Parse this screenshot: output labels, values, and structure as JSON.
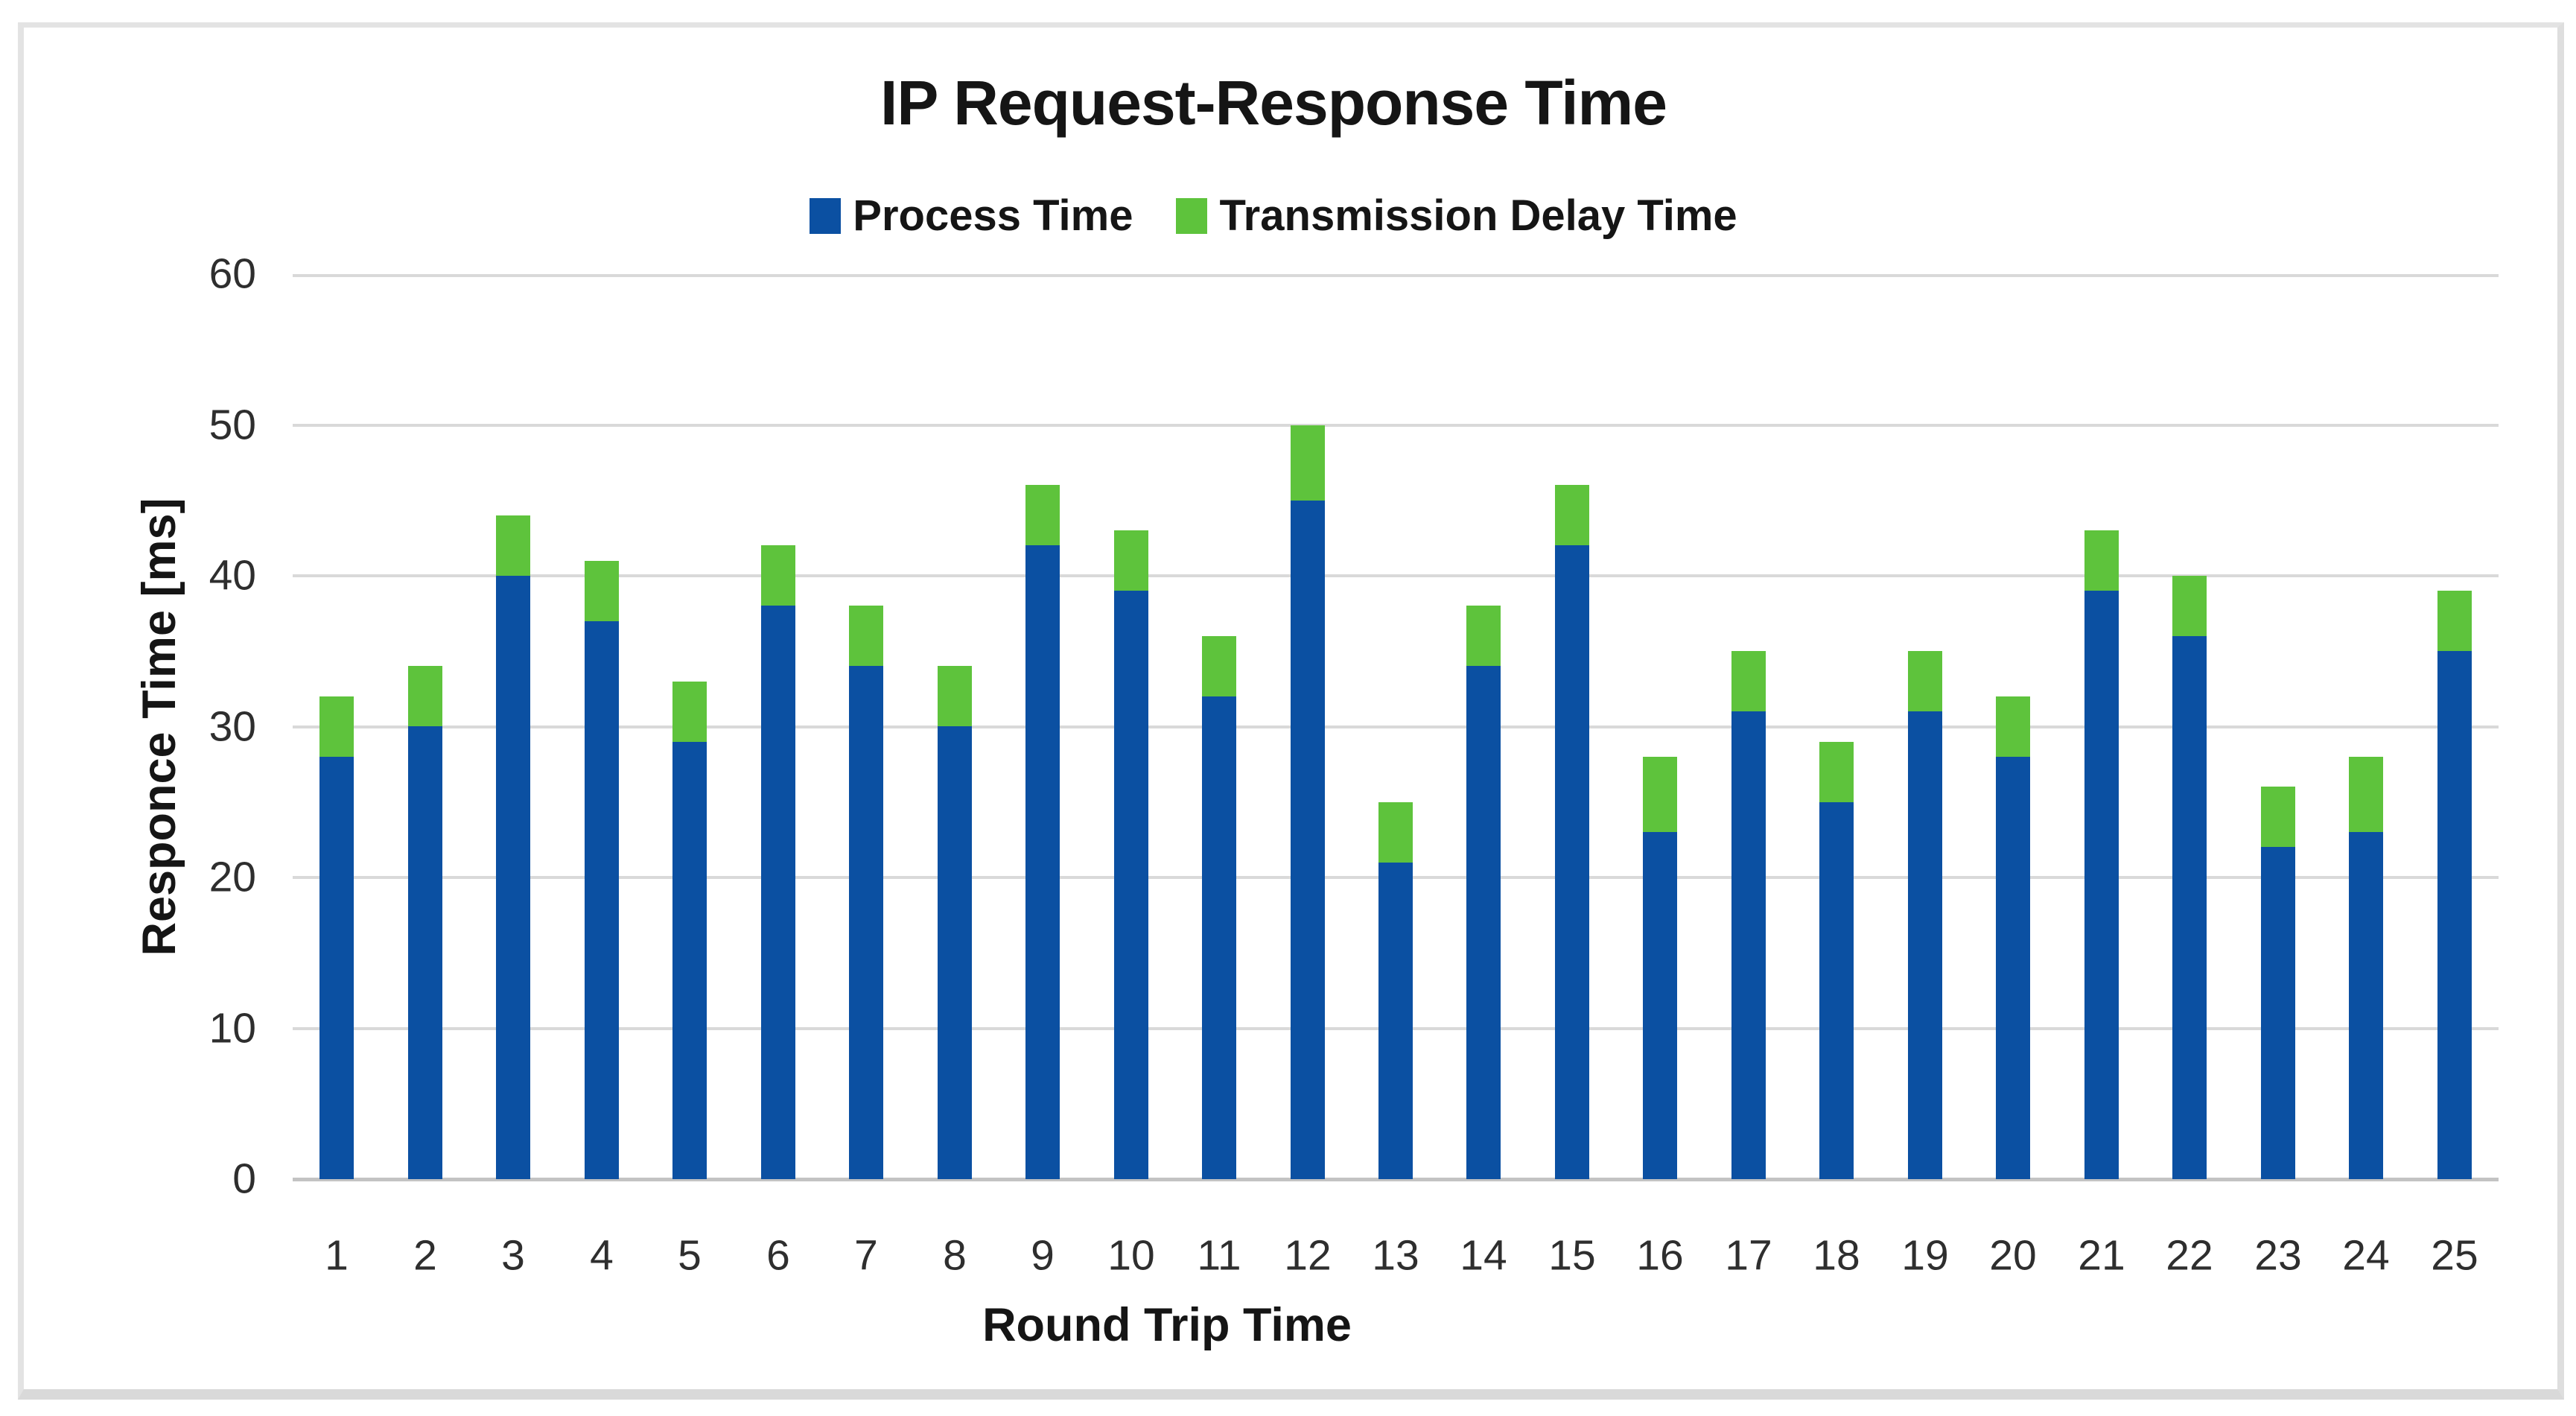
{
  "chart_data": {
    "type": "bar",
    "stacked": true,
    "title": "IP Request-Response Time",
    "xlabel": "Round Trip Time",
    "ylabel": "Responce Time [ms]",
    "categories": [
      1,
      2,
      3,
      4,
      5,
      6,
      7,
      8,
      9,
      10,
      11,
      12,
      13,
      14,
      15,
      16,
      17,
      18,
      19,
      20,
      21,
      22,
      23,
      24,
      25
    ],
    "series": [
      {
        "name": "Process Time",
        "color": "#0B50A2",
        "values": [
          28,
          30,
          40,
          37,
          29,
          38,
          34,
          30,
          42,
          39,
          32,
          45,
          21,
          34,
          42,
          23,
          31,
          25,
          31,
          28,
          39,
          36,
          22,
          23,
          35
        ]
      },
      {
        "name": "Transmission Delay Time",
        "color": "#5EC33C",
        "values": [
          4,
          4,
          4,
          4,
          4,
          4,
          4,
          4,
          4,
          4,
          4,
          5,
          4,
          4,
          4,
          5,
          4,
          4,
          4,
          4,
          4,
          4,
          4,
          5,
          4
        ]
      }
    ],
    "stack_totals": [
      32,
      34,
      44,
      41,
      33,
      42,
      38,
      34,
      46,
      43,
      36,
      50,
      25,
      38,
      46,
      28,
      35,
      29,
      35,
      32,
      43,
      40,
      26,
      28,
      39
    ],
    "ylim": [
      0,
      60
    ],
    "yticks": [
      0,
      10,
      20,
      30,
      40,
      50,
      60
    ],
    "grid": "horizontal",
    "legend_position": "top-center",
    "colors": {
      "gridline": "#d9d9d9",
      "axis_baseline": "#c3c3c3",
      "tick_label": "#2e2e2e",
      "text": "#151515",
      "frame_border": "#dedede",
      "background": "#ffffff"
    }
  }
}
